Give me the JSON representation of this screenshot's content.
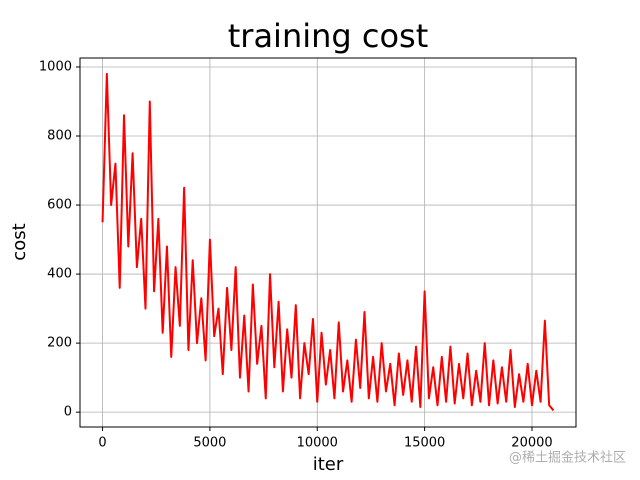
{
  "chart_data": {
    "type": "line",
    "title": "training cost",
    "x_label": "iter",
    "y_label": "cost",
    "watermark": "@稀土掘金技术社区",
    "x": [
      0,
      200,
      400,
      600,
      800,
      1000,
      1200,
      1400,
      1600,
      1800,
      2000,
      2200,
      2400,
      2600,
      2800,
      3000,
      3200,
      3400,
      3600,
      3800,
      4000,
      4200,
      4400,
      4600,
      4800,
      5000,
      5200,
      5400,
      5600,
      5800,
      6000,
      6200,
      6400,
      6600,
      6800,
      7000,
      7200,
      7400,
      7600,
      7800,
      8000,
      8200,
      8400,
      8600,
      8800,
      9000,
      9200,
      9400,
      9600,
      9800,
      10000,
      10200,
      10400,
      10600,
      10800,
      11000,
      11200,
      11400,
      11600,
      11800,
      12000,
      12200,
      12400,
      12600,
      12800,
      13000,
      13200,
      13400,
      13600,
      13800,
      14000,
      14200,
      14400,
      14600,
      14800,
      15000,
      15200,
      15400,
      15600,
      15800,
      16000,
      16200,
      16400,
      16600,
      16800,
      17000,
      17200,
      17400,
      17600,
      17800,
      18000,
      18200,
      18400,
      18600,
      18800,
      19000,
      19200,
      19400,
      19600,
      19800,
      20000,
      20200,
      20400,
      20600,
      20800,
      21000
    ],
    "series": [
      {
        "name": "cost",
        "color": "#ff0000",
        "values": [
          550,
          980,
          600,
          720,
          360,
          860,
          480,
          750,
          420,
          560,
          300,
          900,
          350,
          560,
          230,
          480,
          160,
          420,
          250,
          650,
          180,
          440,
          200,
          330,
          150,
          500,
          220,
          300,
          110,
          360,
          180,
          420,
          100,
          280,
          60,
          370,
          140,
          250,
          40,
          400,
          130,
          320,
          60,
          240,
          100,
          310,
          40,
          200,
          110,
          270,
          30,
          230,
          80,
          180,
          40,
          260,
          60,
          150,
          30,
          210,
          70,
          290,
          40,
          160,
          30,
          200,
          60,
          140,
          20,
          170,
          50,
          150,
          30,
          190,
          15,
          350,
          40,
          130,
          20,
          160,
          30,
          190,
          25,
          140,
          40,
          170,
          20,
          120,
          30,
          200,
          20,
          150,
          25,
          130,
          30,
          180,
          15,
          110,
          30,
          140,
          20,
          120,
          30,
          265,
          20,
          5
        ]
      }
    ],
    "xlim": [
      -1050,
      22050
    ],
    "ylim": [
      -43,
      1026
    ],
    "xticks": [
      0,
      5000,
      10000,
      15000,
      20000
    ],
    "yticks": [
      0,
      200,
      400,
      600,
      800,
      1000
    ],
    "grid": true
  }
}
